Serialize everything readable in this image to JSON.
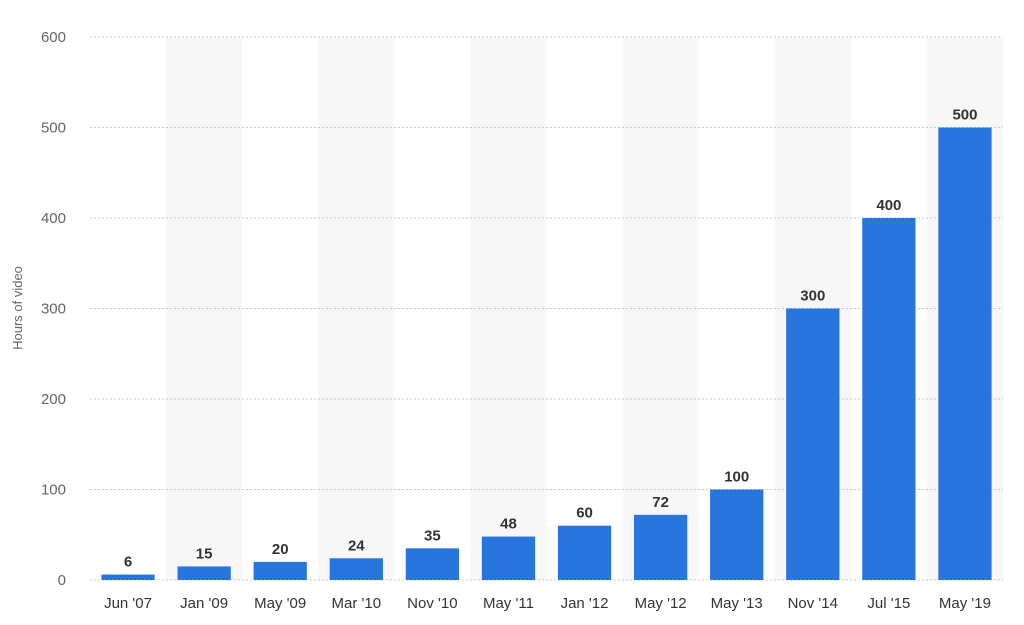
{
  "chart_data": {
    "type": "bar",
    "title": "",
    "xlabel": "",
    "ylabel": "Hours of video",
    "ylim": [
      0,
      600
    ],
    "yticks": [
      0,
      100,
      200,
      300,
      400,
      500,
      600
    ],
    "grid": true,
    "categories": [
      "Jun '07",
      "Jan '09",
      "May '09",
      "Mar '10",
      "Nov '10",
      "May '11",
      "Jan '12",
      "May '12",
      "May '13",
      "Nov '14",
      "Jul '15",
      "May '19"
    ],
    "values": [
      6,
      15,
      20,
      24,
      35,
      48,
      60,
      72,
      100,
      300,
      400,
      500
    ],
    "colors": {
      "bar": "#2876dd"
    }
  }
}
